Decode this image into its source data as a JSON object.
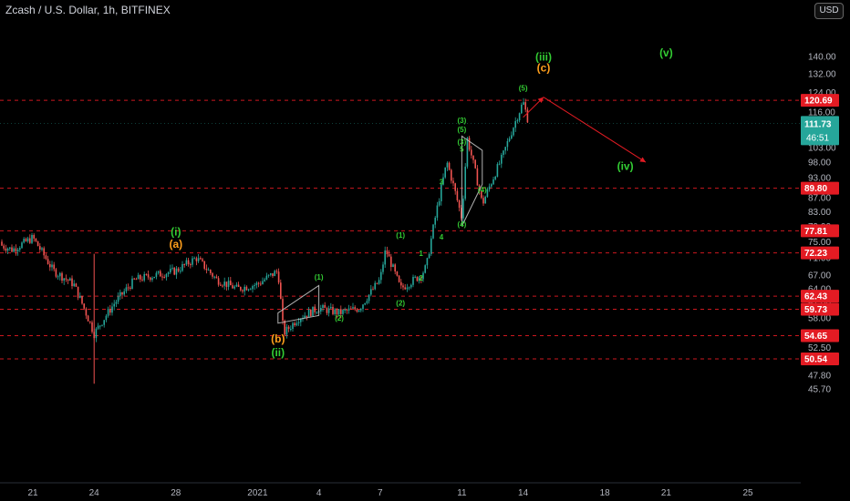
{
  "header": {
    "title": "Zcash / U.S. Dollar, 1h, BITFINEX",
    "currency": "USD"
  },
  "colors": {
    "background": "#000000",
    "up": "#26a69a",
    "down": "#ef5350",
    "level_line": "#e31b23",
    "wave_green": "#33cc33",
    "wave_orange": "#ff9f1c",
    "last_price_bg": "#26a69a"
  },
  "price_badges": {
    "last_price": "111.73",
    "countdown": "46:51"
  },
  "chart_data": {
    "type": "candlestick",
    "y_scale": "log",
    "ylim": [
      45.7,
      144
    ],
    "y_ticks": [
      "45.70",
      "47.80",
      "50.04",
      "52.50",
      "55.00",
      "58.00",
      "61.00",
      "64.00",
      "67.00",
      "71.00",
      "75.00",
      "79.00",
      "83.00",
      "87.00",
      "93.00",
      "98.00",
      "103.00",
      "109.00",
      "116.00",
      "124.00",
      "132.00",
      "140.00"
    ],
    "x_ticks": [
      "21",
      "24",
      "28",
      "2021",
      "4",
      "7",
      "11",
      "14",
      "18",
      "21",
      "25"
    ],
    "levels": [
      {
        "price": 120.69,
        "label": "120.69"
      },
      {
        "price": 89.8,
        "label": "89.80"
      },
      {
        "price": 77.81,
        "label": "77.81"
      },
      {
        "price": 72.23,
        "label": "72.23"
      },
      {
        "price": 62.43,
        "label": "62.43"
      },
      {
        "price": 59.73,
        "label": "59.73"
      },
      {
        "price": 54.65,
        "label": "54.65"
      },
      {
        "price": 50.54,
        "label": "50.54"
      }
    ],
    "price_path": [
      [
        "Dec 19",
        75
      ],
      [
        "Dec 20",
        73
      ],
      [
        "Dec 21",
        76
      ],
      [
        "Dec 22",
        68
      ],
      [
        "Dec 23",
        65
      ],
      [
        "Dec 24",
        55
      ],
      [
        "Dec 25",
        61
      ],
      [
        "Dec 26",
        66
      ],
      [
        "Dec 27",
        67
      ],
      [
        "Dec 28",
        68
      ],
      [
        "Dec 29",
        71
      ],
      [
        "Dec 30",
        66
      ],
      [
        "Dec 31",
        64
      ],
      [
        "Jan 1",
        65
      ],
      [
        "Jan 2",
        68
      ],
      [
        "Jan 2",
        55
      ],
      [
        "Jan 3",
        58
      ],
      [
        "Jan 4",
        60
      ],
      [
        "Jan 5",
        59
      ],
      [
        "Jan 6",
        60
      ],
      [
        "Jan 7",
        66
      ],
      [
        "Jan 7",
        73
      ],
      [
        "Jan 8",
        64
      ],
      [
        "Jan 9",
        67
      ],
      [
        "Jan 9",
        69
      ],
      [
        "Jan 10",
        90
      ],
      [
        "Jan 10",
        98
      ],
      [
        "Jan 11",
        81
      ],
      [
        "Jan 11",
        106
      ],
      [
        "Jan 12",
        85
      ],
      [
        "Jan 13",
        100
      ],
      [
        "Jan 14",
        120
      ],
      [
        "Jan 14",
        112
      ]
    ],
    "wave_labels": [
      {
        "text": "(i)",
        "color": "green",
        "date": "Dec 28",
        "price": 76.6
      },
      {
        "text": "(a)",
        "color": "orange",
        "date": "Dec 28",
        "price": 73.5
      },
      {
        "text": "(b)",
        "color": "orange",
        "date": "Jan 2",
        "price": 53.4
      },
      {
        "text": "(ii)",
        "color": "green",
        "date": "Jan 2",
        "price": 51.0
      },
      {
        "text": "(iii)",
        "color": "green",
        "date": "Jan 15",
        "price": 138
      },
      {
        "text": "(c)",
        "color": "orange",
        "date": "Jan 15",
        "price": 133
      },
      {
        "text": "(iv)",
        "color": "green",
        "date": "Jan 19",
        "price": 95.5
      },
      {
        "text": "(v)",
        "color": "green",
        "date": "Jan 21",
        "price": 140
      },
      {
        "text": "(1)",
        "color": "green",
        "date": "Jan 4",
        "price": 66
      },
      {
        "text": "(2)",
        "color": "green",
        "date": "Jan 5",
        "price": 57.5
      },
      {
        "text": "(1)",
        "color": "green",
        "date": "Jan 8",
        "price": 76
      },
      {
        "text": "(2)",
        "color": "green",
        "date": "Jan 8",
        "price": 60.5
      },
      {
        "text": "1",
        "color": "green",
        "date": "Jan 9",
        "price": 71.5
      },
      {
        "text": "2",
        "color": "green",
        "date": "Jan 9",
        "price": 65.8
      },
      {
        "text": "3",
        "color": "green",
        "date": "Jan 10",
        "price": 91
      },
      {
        "text": "4",
        "color": "green",
        "date": "Jan 10",
        "price": 75.5
      },
      {
        "text": "(3)",
        "color": "green",
        "date": "Jan 11",
        "price": 104
      },
      {
        "text": "5",
        "color": "green",
        "date": "Jan 11",
        "price": 101.5
      },
      {
        "text": "(3)",
        "color": "green",
        "date": "Jan 11",
        "price": 111.8
      },
      {
        "text": "(5)",
        "color": "green",
        "date": "Jan 11",
        "price": 108.5
      },
      {
        "text": "(4)",
        "color": "green",
        "date": "Jan 11",
        "price": 78.8
      },
      {
        "text": "(4)",
        "color": "green",
        "date": "Jan 12",
        "price": 88.6
      },
      {
        "text": "(5)",
        "color": "green",
        "date": "Jan 14",
        "price": 124.7
      }
    ],
    "projection": [
      {
        "date": "Jan 14",
        "price": 114
      },
      {
        "date": "Jan 15",
        "price": 122
      },
      {
        "date": "Jan 20",
        "price": 98
      }
    ],
    "wedges": [
      [
        [
          "Jan 2",
          59
        ],
        [
          "Jan 4",
          64.7
        ],
        [
          "Jan 4",
          58.5
        ],
        [
          "Jan 2",
          57
        ]
      ],
      [
        [
          "Jan 11",
          107
        ],
        [
          "Jan 12",
          102
        ],
        [
          "Jan 12",
          91
        ],
        [
          "Jan 11",
          79
        ]
      ]
    ]
  }
}
